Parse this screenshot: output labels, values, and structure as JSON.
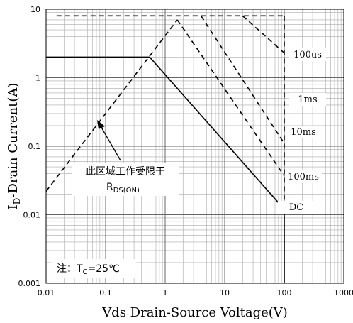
{
  "chart_data": {
    "type": "line",
    "xscale": "log",
    "yscale": "log",
    "grid": true,
    "minor_grid": true,
    "color": "#000000",
    "xlabel": "Vds Drain-Source Voltage(V)",
    "ylabel": [
      "I",
      "D",
      "-Drain Current(A)"
    ],
    "xlim": [
      0.01,
      1000
    ],
    "xticks": [
      0.01,
      0.1,
      1,
      10,
      100,
      1000
    ],
    "ylim": [
      0.001,
      10
    ],
    "yticks": [
      0.001,
      0.01,
      0.1,
      1,
      10
    ],
    "series": [
      {
        "dash": false,
        "x": [
          0.01,
          0.55,
          100,
          100
        ],
        "values": [
          2,
          2,
          0.012,
          0.001
        ]
      },
      {
        "dash": true,
        "x": [
          0.01,
          1.6
        ],
        "values": [
          0.022,
          7
        ]
      },
      {
        "dash": true,
        "x": [
          1.6,
          100
        ],
        "values": [
          7,
          0.037
        ]
      },
      {
        "dash": true,
        "x": [
          4,
          100
        ],
        "values": [
          8,
          0.11
        ]
      },
      {
        "dash": true,
        "x": [
          20,
          100
        ],
        "values": [
          8,
          2.3
        ]
      },
      {
        "dash": true,
        "x": [
          0.015,
          100
        ],
        "values": [
          8,
          8
        ]
      },
      {
        "dash": true,
        "x": [
          100,
          100
        ],
        "values": [
          8,
          0.012
        ]
      }
    ],
    "line_labels": [
      "100us",
      "1ms",
      "10ms",
      "100ms",
      "DC"
    ],
    "annotation": [
      "此区域工作受限于",
      "R",
      "DS(ON)"
    ],
    "note": [
      "注：T",
      "C",
      "=25℃"
    ]
  }
}
